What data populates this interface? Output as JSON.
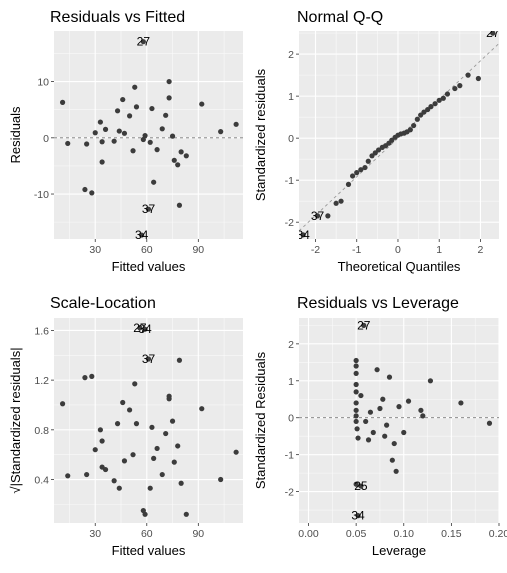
{
  "chart_data": [
    {
      "type": "scatter",
      "title": "Residuals vs Fitted",
      "xlabel": "Fitted values",
      "ylabel": "Residuals",
      "xlim": [
        6,
        116
      ],
      "ylim": [
        -18,
        19
      ],
      "x_ticks": [
        30,
        60,
        90
      ],
      "y_ticks": [
        -10,
        0,
        10
      ],
      "hline": 0,
      "points": [
        {
          "x": 11,
          "y": 6.3
        },
        {
          "x": 14,
          "y": -1
        },
        {
          "x": 24,
          "y": -9.2
        },
        {
          "x": 25,
          "y": -1.1
        },
        {
          "x": 28,
          "y": -9.8
        },
        {
          "x": 30,
          "y": 0.9
        },
        {
          "x": 33,
          "y": 2.8
        },
        {
          "x": 34,
          "y": -0.7
        },
        {
          "x": 34,
          "y": -4.3
        },
        {
          "x": 36,
          "y": 1.5
        },
        {
          "x": 41,
          "y": -0.6
        },
        {
          "x": 43,
          "y": 4.8
        },
        {
          "x": 44,
          "y": 1.2
        },
        {
          "x": 46,
          "y": 6.8
        },
        {
          "x": 47,
          "y": 0.8
        },
        {
          "x": 50,
          "y": 3.9
        },
        {
          "x": 52,
          "y": -2.3
        },
        {
          "x": 53,
          "y": 9
        },
        {
          "x": 54,
          "y": 5.5
        },
        {
          "x": 58,
          "y": -0.3
        },
        {
          "x": 59,
          "y": 0.4
        },
        {
          "x": 62,
          "y": -0.8
        },
        {
          "x": 63,
          "y": 5.2
        },
        {
          "x": 64,
          "y": -7.9
        },
        {
          "x": 66,
          "y": -2.1
        },
        {
          "x": 69,
          "y": 1.6
        },
        {
          "x": 71,
          "y": 4
        },
        {
          "x": 73,
          "y": 10
        },
        {
          "x": 73,
          "y": 7.1
        },
        {
          "x": 75,
          "y": 0.3
        },
        {
          "x": 76,
          "y": -4
        },
        {
          "x": 78,
          "y": -4.8
        },
        {
          "x": 79,
          "y": -12
        },
        {
          "x": 80,
          "y": -2.5
        },
        {
          "x": 83,
          "y": -3.2
        },
        {
          "x": 92,
          "y": 6
        },
        {
          "x": 103,
          "y": 1.1
        },
        {
          "x": 112,
          "y": 2.4
        },
        {
          "x": 58,
          "y": 17.1,
          "label": "27"
        },
        {
          "x": 61,
          "y": -12.7,
          "label": "37"
        },
        {
          "x": 57,
          "y": -17.3,
          "label": "34"
        }
      ]
    },
    {
      "type": "scatter",
      "title": "Normal Q-Q",
      "xlabel": "Theoretical Quantiles",
      "ylabel": "Standardized residuals",
      "xlim": [
        -2.4,
        2.45
      ],
      "ylim": [
        -2.4,
        2.55
      ],
      "x_ticks": [
        -2,
        -1,
        0,
        1,
        2
      ],
      "y_ticks": [
        -2,
        -1,
        0,
        1,
        2
      ],
      "refline": {
        "slope": 0.92,
        "intercept": 0
      },
      "points": [
        {
          "x": -1.7,
          "y": -1.85
        },
        {
          "x": -1.5,
          "y": -1.55
        },
        {
          "x": -1.38,
          "y": -1.5
        },
        {
          "x": -1.2,
          "y": -1.1
        },
        {
          "x": -1.1,
          "y": -0.9
        },
        {
          "x": -1.0,
          "y": -0.82
        },
        {
          "x": -0.9,
          "y": -0.75
        },
        {
          "x": -0.8,
          "y": -0.7
        },
        {
          "x": -0.72,
          "y": -0.55
        },
        {
          "x": -0.63,
          "y": -0.42
        },
        {
          "x": -0.55,
          "y": -0.35
        },
        {
          "x": -0.47,
          "y": -0.28
        },
        {
          "x": -0.38,
          "y": -0.22
        },
        {
          "x": -0.3,
          "y": -0.18
        },
        {
          "x": -0.22,
          "y": -0.12
        },
        {
          "x": -0.15,
          "y": -0.05
        },
        {
          "x": -0.07,
          "y": 0.02
        },
        {
          "x": 0.0,
          "y": 0.07
        },
        {
          "x": 0.07,
          "y": 0.1
        },
        {
          "x": 0.15,
          "y": 0.12
        },
        {
          "x": 0.22,
          "y": 0.15
        },
        {
          "x": 0.3,
          "y": 0.2
        },
        {
          "x": 0.38,
          "y": 0.3
        },
        {
          "x": 0.47,
          "y": 0.45
        },
        {
          "x": 0.55,
          "y": 0.55
        },
        {
          "x": 0.63,
          "y": 0.62
        },
        {
          "x": 0.72,
          "y": 0.68
        },
        {
          "x": 0.8,
          "y": 0.75
        },
        {
          "x": 0.9,
          "y": 0.82
        },
        {
          "x": 1.0,
          "y": 0.9
        },
        {
          "x": 1.1,
          "y": 0.95
        },
        {
          "x": 1.2,
          "y": 1.05
        },
        {
          "x": 1.38,
          "y": 1.18
        },
        {
          "x": 1.5,
          "y": 1.25
        },
        {
          "x": 1.7,
          "y": 1.5
        },
        {
          "x": 1.95,
          "y": 1.42
        },
        {
          "x": -2.3,
          "y": -2.3,
          "label": "34"
        },
        {
          "x": -1.95,
          "y": -1.85,
          "label": "37"
        },
        {
          "x": 2.3,
          "y": 2.5,
          "label": "27"
        }
      ]
    },
    {
      "type": "scatter",
      "title": "Scale-Location",
      "xlabel": "Fitted values",
      "ylabel": "√|Standardized residuals|",
      "xlim": [
        6,
        116
      ],
      "ylim": [
        0.05,
        1.7
      ],
      "x_ticks": [
        30,
        60,
        90
      ],
      "y_ticks": [
        0.4,
        0.8,
        1.2,
        1.6
      ],
      "points": [
        {
          "x": 11,
          "y": 1.01
        },
        {
          "x": 14,
          "y": 0.43
        },
        {
          "x": 24,
          "y": 1.22
        },
        {
          "x": 25,
          "y": 0.44
        },
        {
          "x": 28,
          "y": 1.23
        },
        {
          "x": 30,
          "y": 0.64
        },
        {
          "x": 33,
          "y": 0.8
        },
        {
          "x": 34,
          "y": 0.5
        },
        {
          "x": 34,
          "y": 0.71
        },
        {
          "x": 36,
          "y": 0.48
        },
        {
          "x": 41,
          "y": 0.39
        },
        {
          "x": 43,
          "y": 0.85
        },
        {
          "x": 44,
          "y": 0.33
        },
        {
          "x": 46,
          "y": 1.02
        },
        {
          "x": 47,
          "y": 0.55
        },
        {
          "x": 50,
          "y": 0.96
        },
        {
          "x": 52,
          "y": 0.6
        },
        {
          "x": 53,
          "y": 1.17
        },
        {
          "x": 54,
          "y": 0.85
        },
        {
          "x": 58,
          "y": 0.15
        },
        {
          "x": 59,
          "y": 0.12
        },
        {
          "x": 62,
          "y": 0.33
        },
        {
          "x": 63,
          "y": 0.82
        },
        {
          "x": 64,
          "y": 0.57
        },
        {
          "x": 66,
          "y": 0.65
        },
        {
          "x": 69,
          "y": 0.44
        },
        {
          "x": 71,
          "y": 0.77
        },
        {
          "x": 73,
          "y": 1.07
        },
        {
          "x": 73,
          "y": 1.05
        },
        {
          "x": 75,
          "y": 0.87
        },
        {
          "x": 76,
          "y": 0.54
        },
        {
          "x": 78,
          "y": 0.67
        },
        {
          "x": 79,
          "y": 1.36
        },
        {
          "x": 80,
          "y": 0.37
        },
        {
          "x": 83,
          "y": 0.12
        },
        {
          "x": 92,
          "y": 0.97
        },
        {
          "x": 103,
          "y": 0.4
        },
        {
          "x": 112,
          "y": 0.62
        },
        {
          "x": 56,
          "y": 1.62,
          "label": "27"
        },
        {
          "x": 59,
          "y": 1.61,
          "label": "34"
        },
        {
          "x": 61,
          "y": 1.37,
          "label": "37"
        }
      ]
    },
    {
      "type": "scatter",
      "title": "Residuals vs Leverage",
      "xlabel": "Leverage",
      "ylabel": "Standardized Residuals",
      "xlim": [
        -0.01,
        0.2
      ],
      "ylim": [
        -2.85,
        2.7
      ],
      "x_ticks": [
        0.0,
        0.05,
        0.1,
        0.15,
        0.2
      ],
      "x_tick_labels": [
        "0.00",
        "0.05",
        "0.10",
        "0.15",
        "0.20"
      ],
      "y_ticks": [
        -2,
        -1,
        0,
        1,
        2
      ],
      "hline": 0,
      "points": [
        {
          "x": 0.05,
          "y": 1.55
        },
        {
          "x": 0.05,
          "y": 1.4
        },
        {
          "x": 0.05,
          "y": 1.2
        },
        {
          "x": 0.05,
          "y": 0.9
        },
        {
          "x": 0.05,
          "y": 0.7
        },
        {
          "x": 0.05,
          "y": 0.4
        },
        {
          "x": 0.05,
          "y": 0.2
        },
        {
          "x": 0.05,
          "y": 0.05
        },
        {
          "x": 0.05,
          "y": -0.1
        },
        {
          "x": 0.051,
          "y": -0.3
        },
        {
          "x": 0.052,
          "y": -0.55
        },
        {
          "x": 0.05,
          "y": -1.8
        },
        {
          "x": 0.055,
          "y": 0.6
        },
        {
          "x": 0.06,
          "y": -0.1
        },
        {
          "x": 0.063,
          "y": -0.6
        },
        {
          "x": 0.065,
          "y": 0.15
        },
        {
          "x": 0.068,
          "y": -0.4
        },
        {
          "x": 0.072,
          "y": 1.3
        },
        {
          "x": 0.075,
          "y": 0.25
        },
        {
          "x": 0.078,
          "y": 0.5
        },
        {
          "x": 0.08,
          "y": -0.5
        },
        {
          "x": 0.082,
          "y": -0.2
        },
        {
          "x": 0.085,
          "y": 1.1
        },
        {
          "x": 0.088,
          "y": -1.15
        },
        {
          "x": 0.09,
          "y": -0.7
        },
        {
          "x": 0.092,
          "y": -1.45
        },
        {
          "x": 0.095,
          "y": 0.3
        },
        {
          "x": 0.1,
          "y": -0.4
        },
        {
          "x": 0.105,
          "y": 0.45
        },
        {
          "x": 0.118,
          "y": 0.2
        },
        {
          "x": 0.12,
          "y": 0.05
        },
        {
          "x": 0.128,
          "y": 1.0
        },
        {
          "x": 0.16,
          "y": 0.4
        },
        {
          "x": 0.19,
          "y": -0.15
        },
        {
          "x": 0.058,
          "y": 2.5,
          "label": "27"
        },
        {
          "x": 0.055,
          "y": -1.85,
          "label": "25"
        },
        {
          "x": 0.052,
          "y": -2.65,
          "label": "34"
        }
      ]
    }
  ]
}
